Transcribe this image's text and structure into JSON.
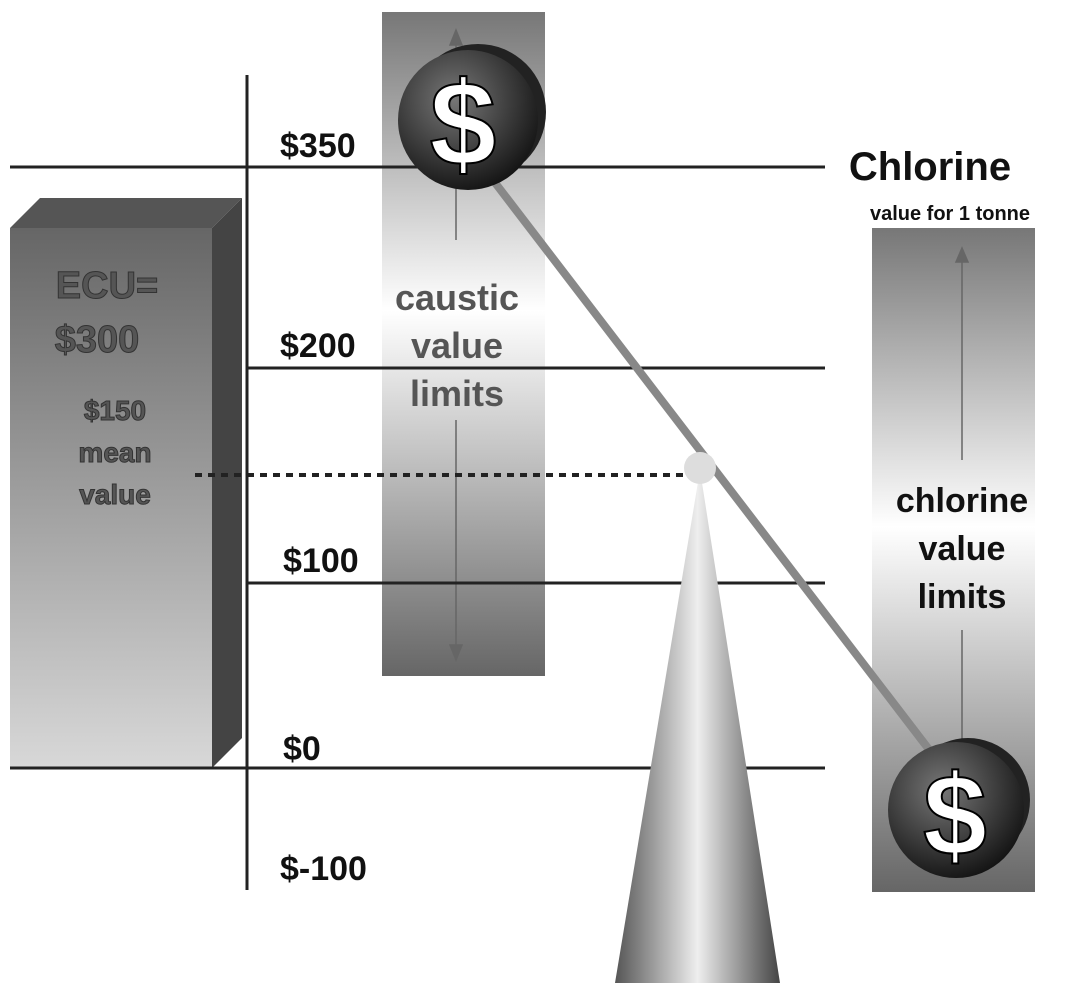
{
  "axis_labels": [
    "$350",
    "$200",
    "$100",
    "$0",
    "$-100"
  ],
  "ecu_box": {
    "lines": [
      "ECU=",
      "$300"
    ],
    "mean_lines": [
      "$150",
      "mean",
      "value"
    ]
  },
  "caustic_label": [
    "caustic",
    "value",
    "limits"
  ],
  "chlorine": {
    "title": "Chlorine",
    "subtitle": "value for 1 tonne",
    "label": [
      "chlorine",
      "value",
      "limits"
    ]
  },
  "coin_symbol": "$"
}
